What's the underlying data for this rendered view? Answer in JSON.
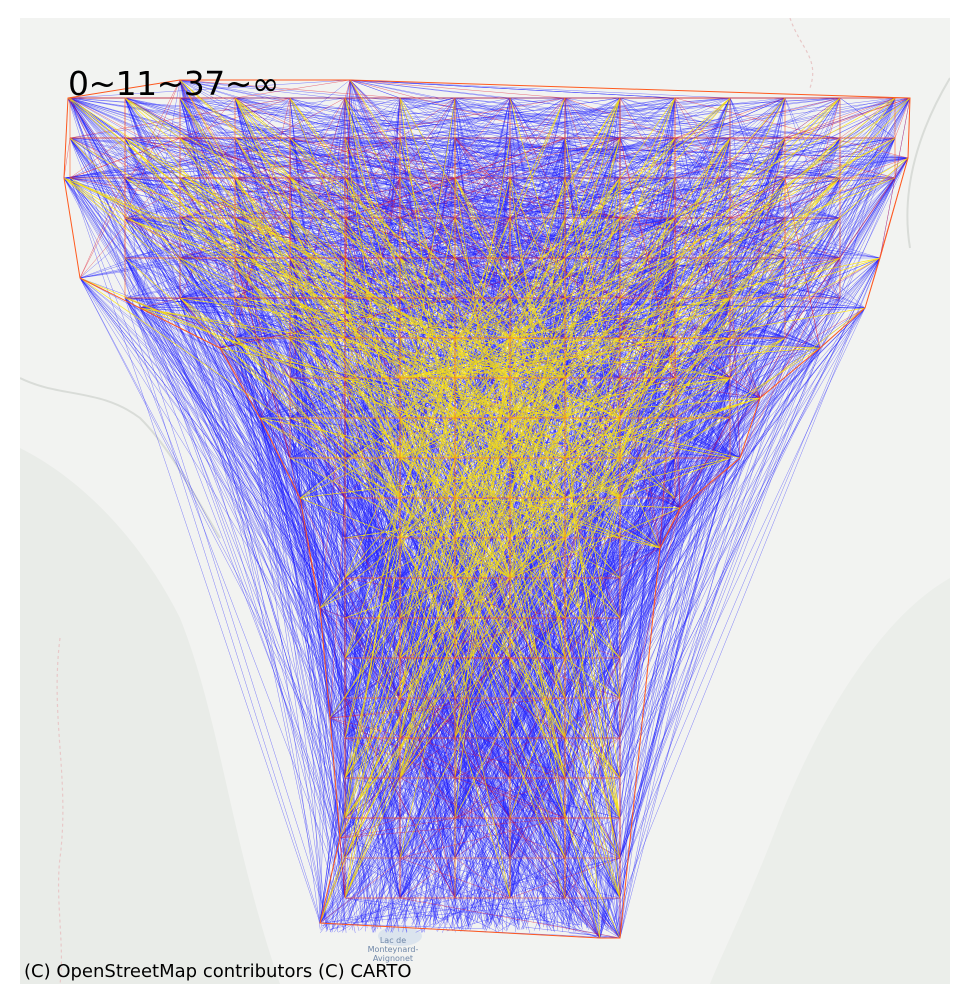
{
  "map": {
    "legend_text": "0~11~37~∞",
    "attribution": "(C) OpenStreetMap contributors (C) CARTO",
    "basemap_labels": [
      "Lac de",
      "Monteynard-",
      "Avignonet"
    ]
  },
  "colors": {
    "basemap": "#f2f3f1",
    "band_far": "#1f1fff",
    "band_mid": "#e0102a",
    "band_near": "#ffe600",
    "grid_edge": "#ff5a1e"
  },
  "legend_bands": [
    {
      "range": "0~11",
      "color": "#ffe600"
    },
    {
      "range": "11~37",
      "color": "#e0102a"
    },
    {
      "range": "37~∞",
      "color": "#1f1fff"
    }
  ]
}
